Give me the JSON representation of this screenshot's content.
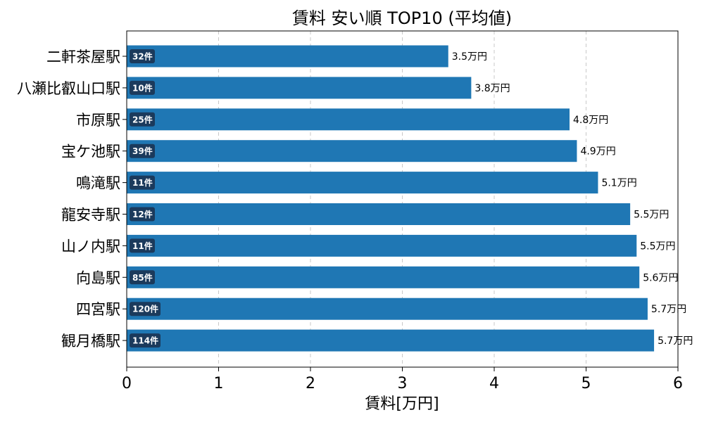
{
  "chart_data": {
    "type": "bar",
    "orientation": "horizontal",
    "title": "賃料 安い順 TOP10 (平均値)",
    "xlabel": "賃料[万円]",
    "ylabel": "",
    "xlim": [
      0,
      6
    ],
    "xticks": [
      "0",
      "1",
      "2",
      "3",
      "4",
      "5",
      "6"
    ],
    "grid": "x-dashed",
    "bar_color": "#1f77b4",
    "badge_color": "#1b3a5c",
    "categories": [
      "二軒茶屋駅",
      "八瀬比叡山口駅",
      "市原駅",
      "宝ケ池駅",
      "鳴滝駅",
      "龍安寺駅",
      "山ノ内駅",
      "向島駅",
      "四宮駅",
      "観月橋駅"
    ],
    "values": [
      3.5,
      3.75,
      4.82,
      4.9,
      5.13,
      5.48,
      5.55,
      5.58,
      5.67,
      5.74
    ],
    "value_labels": [
      "3.5万円",
      "3.8万円",
      "4.8万円",
      "4.9万円",
      "5.1万円",
      "5.5万円",
      "5.5万円",
      "5.6万円",
      "5.7万円",
      "5.7万円"
    ],
    "count_labels": [
      "32件",
      "10件",
      "25件",
      "39件",
      "11件",
      "12件",
      "11件",
      "85件",
      "120件",
      "114件"
    ]
  }
}
